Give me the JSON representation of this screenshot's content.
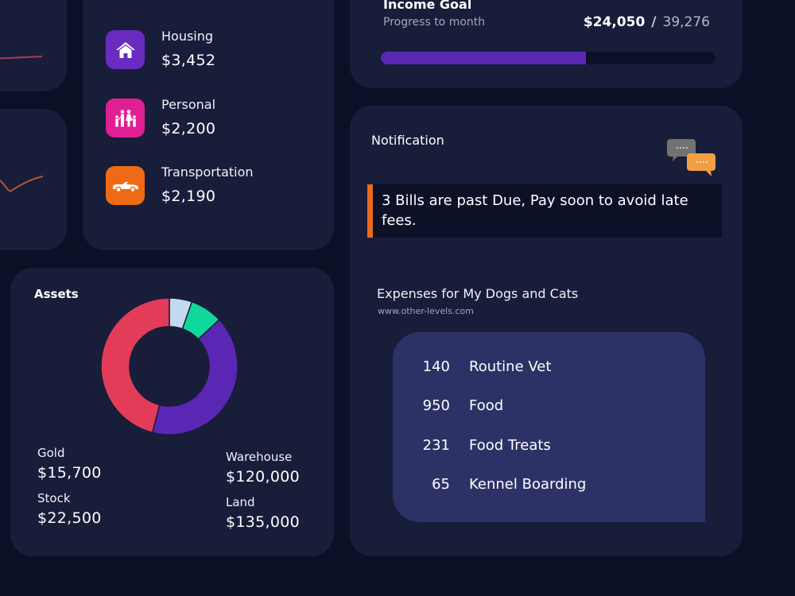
{
  "categories": {
    "items": [
      {
        "label": "Housing",
        "value": "$3,452",
        "icon": "house-icon",
        "color": "#6a2bc0"
      },
      {
        "label": "Personal",
        "value": "$2,200",
        "icon": "family-icon",
        "color": "#e01f93"
      },
      {
        "label": "Transportation",
        "value": "$2,190",
        "icon": "car-icon",
        "color": "#ee6a14"
      }
    ]
  },
  "income_goal": {
    "title": "Income Goal",
    "subtitle": "Progress to month",
    "current": "$24,050",
    "separator": "/",
    "target": "39,276",
    "progress_percent": 61.2,
    "bar_color": "#5a27b5"
  },
  "notification": {
    "title": "Notification",
    "icon": "chat-bubbles-icon",
    "message": "3 Bills are past Due, Pay soon to avoid late fees.",
    "accent_color": "#e96a1e"
  },
  "pets": {
    "title": "Expenses for My Dogs and Cats",
    "link": "www.other-levels.com",
    "rows": [
      {
        "amount": "140",
        "label": "Routine Vet"
      },
      {
        "amount": "950",
        "label": "Food"
      },
      {
        "amount": "231",
        "label": "Food Treats"
      },
      {
        "amount": "65",
        "label": "Kennel Boarding"
      }
    ]
  },
  "assets": {
    "title": "Assets",
    "items": [
      {
        "label": "Gold",
        "value": "$15,700"
      },
      {
        "label": "Stock",
        "value": "$22,500"
      },
      {
        "label": "Warehouse",
        "value": "$120,000"
      },
      {
        "label": "Land",
        "value": "$135,000"
      }
    ]
  },
  "chart_data": {
    "type": "pie",
    "title": "Assets",
    "categories": [
      "Gold",
      "Stock",
      "Warehouse",
      "Land"
    ],
    "values": [
      15700,
      22500,
      120000,
      135000
    ],
    "colors": [
      "#c2d9ee",
      "#0fd99a",
      "#5a27b5",
      "#e33c58"
    ],
    "donut": true
  }
}
